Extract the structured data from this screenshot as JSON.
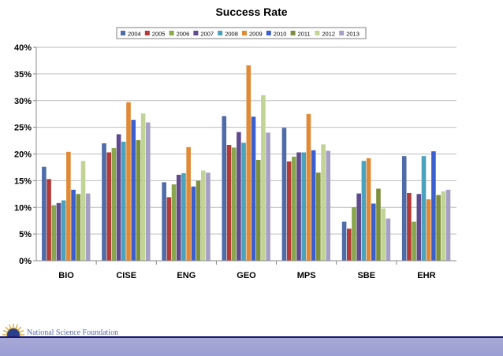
{
  "chart_data": {
    "type": "bar",
    "title": "Success Rate",
    "categories": [
      "BIO",
      "CISE",
      "ENG",
      "GEO",
      "MPS",
      "SBE",
      "EHR"
    ],
    "ylim": [
      0,
      40
    ],
    "y_unit": "%",
    "y_ticks": [
      0,
      5,
      10,
      15,
      20,
      25,
      30,
      35,
      40
    ],
    "grid": true,
    "legend_position": "top",
    "series": [
      {
        "name": "2004",
        "color": "#4f6ba8",
        "values": [
          17.6,
          22.0,
          14.7,
          27.1,
          24.9,
          7.3,
          19.6
        ]
      },
      {
        "name": "2005",
        "color": "#b23a37",
        "values": [
          15.3,
          20.3,
          11.9,
          21.7,
          18.6,
          6.0,
          12.7
        ]
      },
      {
        "name": "2006",
        "color": "#8aa64a",
        "values": [
          10.4,
          21.1,
          14.3,
          21.2,
          19.5,
          10.0,
          7.3
        ]
      },
      {
        "name": "2007",
        "color": "#5f4a8e",
        "values": [
          10.8,
          23.7,
          16.1,
          24.1,
          20.3,
          12.6,
          12.5
        ]
      },
      {
        "name": "2008",
        "color": "#4aa2bc",
        "values": [
          11.3,
          22.3,
          16.4,
          22.1,
          20.3,
          18.7,
          19.6
        ]
      },
      {
        "name": "2009",
        "color": "#e08a36",
        "values": [
          20.4,
          29.7,
          21.3,
          36.6,
          27.5,
          19.2,
          11.5
        ]
      },
      {
        "name": "2010",
        "color": "#3b5fcf",
        "values": [
          13.3,
          26.4,
          13.9,
          27.0,
          20.7,
          10.7,
          20.5
        ]
      },
      {
        "name": "2011",
        "color": "#7d8f3d",
        "values": [
          12.5,
          22.6,
          15.0,
          18.9,
          16.5,
          13.5,
          12.3
        ]
      },
      {
        "name": "2012",
        "color": "#c1d496",
        "values": [
          18.7,
          27.6,
          16.9,
          31.0,
          21.8,
          9.8,
          13.0
        ]
      },
      {
        "name": "2013",
        "color": "#a59fc6",
        "values": [
          12.6,
          25.9,
          16.5,
          24.0,
          20.6,
          7.9,
          13.3
        ]
      }
    ]
  },
  "footer": {
    "org_name": "National Science Foundation",
    "logo_text": "NSF",
    "bar_color": "#a7a9d8"
  }
}
